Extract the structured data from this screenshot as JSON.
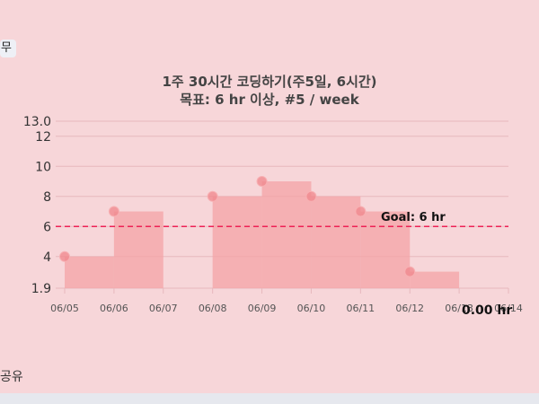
{
  "side_label": "무",
  "share_label": "공유",
  "chart_data": {
    "type": "bar",
    "title": "1주 30시간 코딩하기(주5일, 6시간)",
    "subtitle": "목표: 6 hr 이상, #5 / week",
    "categories": [
      "06/05",
      "06/06",
      "06/07",
      "06/08",
      "06/09",
      "06/10",
      "06/11",
      "06/12",
      "06/13",
      "06/14"
    ],
    "values": [
      4,
      7,
      null,
      8,
      9,
      8,
      7,
      3,
      null,
      null
    ],
    "ylim": [
      1.9,
      13.0
    ],
    "y_ticks": [
      "13.0",
      "12",
      "10",
      "8",
      "6",
      "4",
      "1.9"
    ],
    "goal": {
      "value": 6,
      "label": "Goal: 6 hr",
      "color": "#ee2255"
    },
    "total_label": "0.00 hr",
    "grid": true,
    "colors": {
      "bar": "#f4a3a6",
      "point": "#f08a8e",
      "grid": "#e7b8bd"
    }
  }
}
